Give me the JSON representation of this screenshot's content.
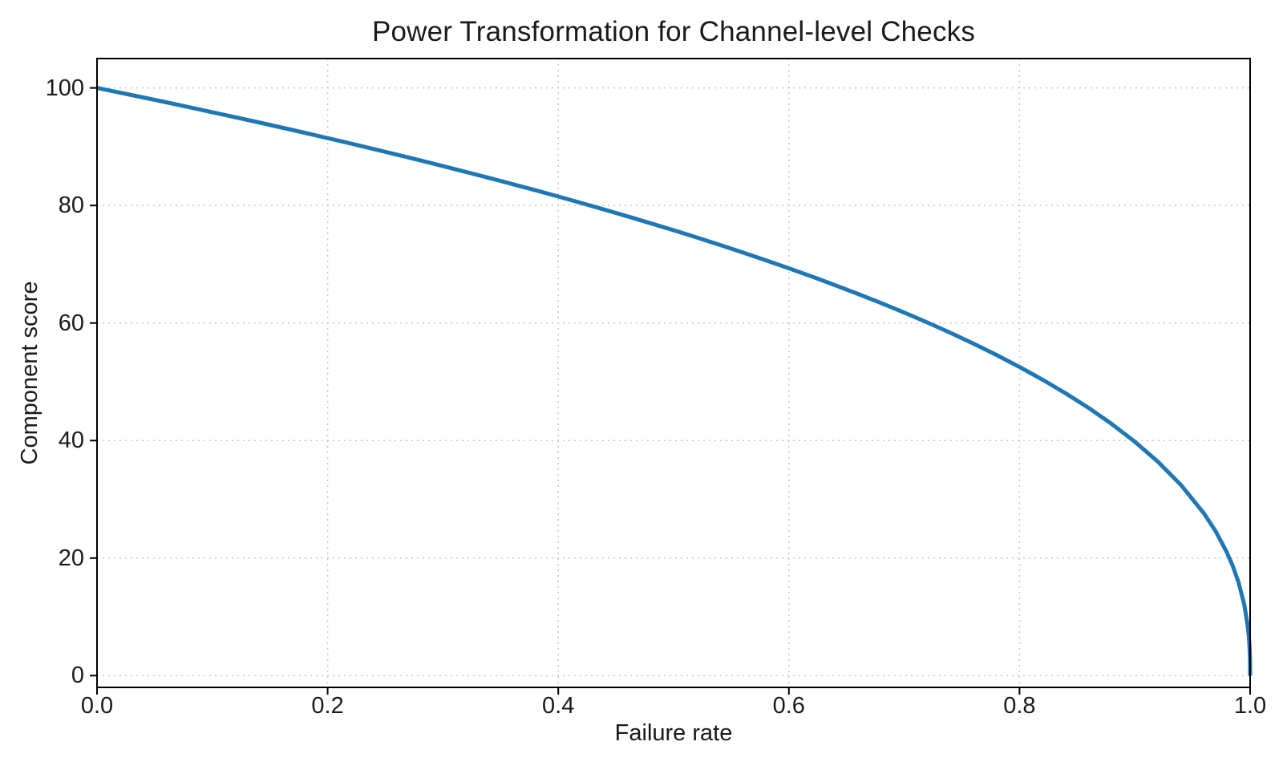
{
  "chart_data": {
    "type": "line",
    "title": "Power Transformation for Channel-level Checks",
    "xlabel": "Failure rate",
    "ylabel": "Component score",
    "xlim": [
      0.0,
      1.0
    ],
    "ylim": [
      -2,
      105
    ],
    "xticks": [
      0.0,
      0.2,
      0.4,
      0.6,
      0.8,
      1.0
    ],
    "xtick_labels": [
      "0.0",
      "0.2",
      "0.4",
      "0.6",
      "0.8",
      "1.0"
    ],
    "yticks": [
      0,
      20,
      40,
      60,
      80,
      100
    ],
    "ytick_labels": [
      "0",
      "20",
      "40",
      "60",
      "80",
      "100"
    ],
    "grid": true,
    "grid_style": "dotted",
    "legend": "none",
    "line_color": "#1f77b4",
    "line_width": 5,
    "grid_color": "#c7c7c7",
    "axis_color": "#000000",
    "text_color": "#1a1a1a",
    "relationship": "score = 100 * (1 - failure_rate)^0.4",
    "series": [
      {
        "name": "component-score-curve",
        "points": [
          [
            0.0,
            100.0
          ],
          [
            0.02,
            99.19
          ],
          [
            0.04,
            98.38
          ],
          [
            0.06,
            97.56
          ],
          [
            0.08,
            96.72
          ],
          [
            0.1,
            95.87
          ],
          [
            0.12,
            95.01
          ],
          [
            0.14,
            94.15
          ],
          [
            0.16,
            93.26
          ],
          [
            0.18,
            92.37
          ],
          [
            0.2,
            91.46
          ],
          [
            0.22,
            90.54
          ],
          [
            0.24,
            89.6
          ],
          [
            0.26,
            88.65
          ],
          [
            0.28,
            87.69
          ],
          [
            0.3,
            86.7
          ],
          [
            0.32,
            85.7
          ],
          [
            0.34,
            84.69
          ],
          [
            0.36,
            83.65
          ],
          [
            0.38,
            82.6
          ],
          [
            0.4,
            81.52
          ],
          [
            0.42,
            80.42
          ],
          [
            0.44,
            79.3
          ],
          [
            0.46,
            78.16
          ],
          [
            0.48,
            76.98
          ],
          [
            0.5,
            75.79
          ],
          [
            0.52,
            74.56
          ],
          [
            0.54,
            73.3
          ],
          [
            0.56,
            72.01
          ],
          [
            0.58,
            70.68
          ],
          [
            0.6,
            69.31
          ],
          [
            0.62,
            67.91
          ],
          [
            0.64,
            66.45
          ],
          [
            0.66,
            64.95
          ],
          [
            0.68,
            63.4
          ],
          [
            0.7,
            61.78
          ],
          [
            0.72,
            60.1
          ],
          [
            0.74,
            58.34
          ],
          [
            0.76,
            56.5
          ],
          [
            0.78,
            54.57
          ],
          [
            0.8,
            52.53
          ],
          [
            0.82,
            50.36
          ],
          [
            0.84,
            48.04
          ],
          [
            0.86,
            45.55
          ],
          [
            0.88,
            42.82
          ],
          [
            0.9,
            39.81
          ],
          [
            0.92,
            36.41
          ],
          [
            0.94,
            32.45
          ],
          [
            0.96,
            27.59
          ],
          [
            0.97,
            24.6
          ],
          [
            0.98,
            20.91
          ],
          [
            0.985,
            18.64
          ],
          [
            0.99,
            15.85
          ],
          [
            0.995,
            12.01
          ],
          [
            0.998,
            8.33
          ],
          [
            0.999,
            6.31
          ],
          [
            0.9995,
            4.78
          ],
          [
            0.9999,
            2.51
          ],
          [
            1.0,
            0.0
          ]
        ]
      }
    ]
  }
}
